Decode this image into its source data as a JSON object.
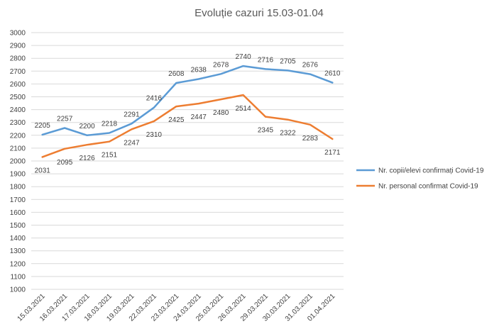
{
  "chart_data": {
    "type": "line",
    "title": "Evoluție cazuri 15.03-01.04",
    "xlabel": "",
    "ylabel": "",
    "ylim": [
      1000,
      3000
    ],
    "ytick_step": 100,
    "grid": true,
    "legend_position": "right",
    "categories": [
      "15.03.2021",
      "16.03.2021",
      "17.03.2021",
      "18.03.2021",
      "19.03.2021",
      "22.03.2021",
      "23.03.2021",
      "24.03.2021",
      "25.03.2021",
      "26.03.2021",
      "29.03.2021",
      "30.03.2021",
      "31.03.2021",
      "01.04.2021"
    ],
    "series": [
      {
        "name": "Nr. copii/elevi confirmați Covid-19",
        "color": "#5B9BD5",
        "values": [
          2205,
          2257,
          2200,
          2218,
          2291,
          2416,
          2608,
          2638,
          2678,
          2740,
          2716,
          2705,
          2676,
          2610
        ]
      },
      {
        "name": "Nr. personal confirmat Covid-19",
        "color": "#ED7D31",
        "values": [
          2031,
          2095,
          2126,
          2151,
          2247,
          2310,
          2425,
          2447,
          2480,
          2514,
          2345,
          2322,
          2283,
          2171
        ]
      }
    ]
  }
}
